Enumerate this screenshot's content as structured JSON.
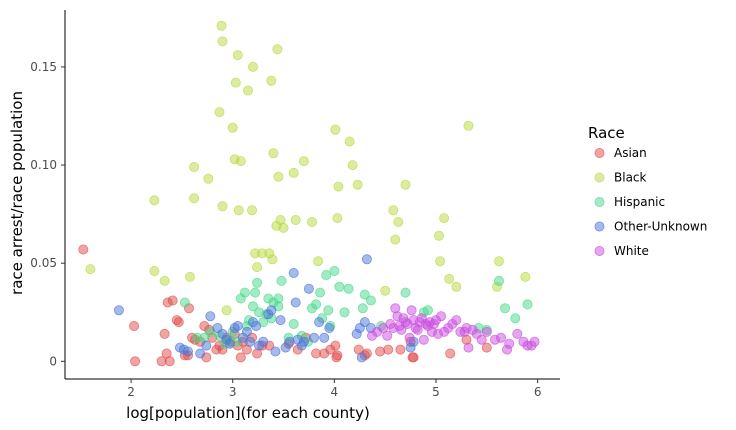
{
  "chart_data": {
    "type": "scatter",
    "xlabel": "log[population](for each county)",
    "ylabel": "race arrest/race population",
    "xlim": [
      1.35,
      6.22
    ],
    "ylim": [
      -0.009,
      0.179
    ],
    "x_ticks": [
      2,
      3,
      4,
      5,
      6
    ],
    "y_ticks": [
      0,
      0.05,
      0.1,
      0.15
    ],
    "x_tick_labels": [
      "2",
      "3",
      "4",
      "5",
      "6"
    ],
    "y_tick_labels": [
      "0",
      "0.05",
      "0.10",
      "0.15"
    ],
    "grid": false,
    "legend": {
      "title": "Race",
      "position": "right"
    },
    "series": [
      {
        "name": "Asian",
        "color": "#e24b4b",
        "points": [
          [
            1.53,
            0.057
          ],
          [
            2.03,
            0.018
          ],
          [
            2.04,
            0.0
          ],
          [
            2.3,
            0.0
          ],
          [
            2.33,
            0.014
          ],
          [
            2.35,
            0.004
          ],
          [
            2.36,
            0.03
          ],
          [
            2.38,
            0.0
          ],
          [
            2.41,
            0.031
          ],
          [
            2.45,
            0.021
          ],
          [
            2.47,
            0.02
          ],
          [
            2.53,
            0.003
          ],
          [
            2.56,
            0.003
          ],
          [
            2.57,
            0.027
          ],
          [
            2.6,
            0.012
          ],
          [
            2.63,
            0.011
          ],
          [
            2.68,
            0.01
          ],
          [
            2.72,
            0.018
          ],
          [
            2.74,
            0.002
          ],
          [
            2.77,
            0.016
          ],
          [
            2.8,
            0.012
          ],
          [
            2.84,
            0.006
          ],
          [
            2.87,
            0.008
          ],
          [
            2.9,
            0.006
          ],
          [
            2.94,
            0.012
          ],
          [
            2.98,
            0.01
          ],
          [
            3.02,
            0.014
          ],
          [
            3.05,
            0.008
          ],
          [
            3.08,
            0.002
          ],
          [
            3.1,
            0.01
          ],
          [
            3.14,
            0.006
          ],
          [
            3.19,
            0.012
          ],
          [
            3.24,
            0.004
          ],
          [
            3.29,
            0.008
          ],
          [
            3.36,
            0.008
          ],
          [
            3.55,
            0.009
          ],
          [
            3.64,
            0.006
          ],
          [
            3.72,
            0.012
          ],
          [
            3.82,
            0.004
          ],
          [
            3.9,
            0.004
          ],
          [
            3.96,
            0.006
          ],
          [
            4.01,
            0.008
          ],
          [
            4.02,
            0.002
          ],
          [
            4.03,
            0.003
          ],
          [
            4.24,
            0.006
          ],
          [
            4.3,
            0.003
          ],
          [
            4.32,
            0.004
          ],
          [
            4.45,
            0.005
          ],
          [
            4.53,
            0.006
          ],
          [
            4.65,
            0.006
          ],
          [
            4.75,
            0.01
          ],
          [
            4.77,
            0.002
          ],
          [
            4.78,
            0.002
          ],
          [
            5.14,
            0.004
          ],
          [
            5.3,
            0.011
          ],
          [
            5.5,
            0.007
          ]
        ]
      },
      {
        "name": "Black",
        "color": "#b7d93e",
        "points": [
          [
            1.6,
            0.047
          ],
          [
            2.23,
            0.082
          ],
          [
            2.23,
            0.046
          ],
          [
            2.33,
            0.041
          ],
          [
            2.58,
            0.043
          ],
          [
            2.62,
            0.099
          ],
          [
            2.62,
            0.083
          ],
          [
            2.76,
            0.093
          ],
          [
            2.87,
            0.127
          ],
          [
            2.89,
            0.171
          ],
          [
            2.9,
            0.163
          ],
          [
            2.9,
            0.079
          ],
          [
            2.94,
            0.026
          ],
          [
            3.0,
            0.119
          ],
          [
            3.02,
            0.103
          ],
          [
            3.03,
            0.142
          ],
          [
            3.05,
            0.156
          ],
          [
            3.06,
            0.077
          ],
          [
            3.08,
            0.102
          ],
          [
            3.15,
            0.138
          ],
          [
            3.19,
            0.077
          ],
          [
            3.2,
            0.15
          ],
          [
            3.22,
            0.055
          ],
          [
            3.24,
            0.048
          ],
          [
            3.29,
            0.055
          ],
          [
            3.36,
            0.055
          ],
          [
            3.38,
            0.143
          ],
          [
            3.39,
            0.052
          ],
          [
            3.4,
            0.106
          ],
          [
            3.43,
            0.069
          ],
          [
            3.44,
            0.159
          ],
          [
            3.45,
            0.094
          ],
          [
            3.47,
            0.072
          ],
          [
            3.5,
            0.068
          ],
          [
            3.6,
            0.096
          ],
          [
            3.62,
            0.072
          ],
          [
            3.7,
            0.102
          ],
          [
            3.78,
            0.071
          ],
          [
            3.84,
            0.051
          ],
          [
            4.01,
            0.118
          ],
          [
            4.03,
            0.073
          ],
          [
            4.04,
            0.089
          ],
          [
            4.15,
            0.112
          ],
          [
            4.18,
            0.1
          ],
          [
            4.23,
            0.09
          ],
          [
            4.5,
            0.036
          ],
          [
            4.58,
            0.077
          ],
          [
            4.6,
            0.062
          ],
          [
            4.63,
            0.071
          ],
          [
            4.7,
            0.09
          ],
          [
            5.03,
            0.064
          ],
          [
            5.04,
            0.051
          ],
          [
            5.08,
            0.073
          ],
          [
            5.13,
            0.042
          ],
          [
            5.2,
            0.038
          ],
          [
            5.32,
            0.12
          ],
          [
            5.6,
            0.038
          ],
          [
            5.62,
            0.051
          ],
          [
            5.88,
            0.043
          ]
        ]
      },
      {
        "name": "Hispanic",
        "color": "#47d88a",
        "points": [
          [
            2.53,
            0.03
          ],
          [
            2.65,
            0.012
          ],
          [
            2.72,
            0.012
          ],
          [
            2.78,
            0.015
          ],
          [
            2.87,
            0.013
          ],
          [
            2.92,
            0.009
          ],
          [
            2.96,
            0.011
          ],
          [
            3.0,
            0.015
          ],
          [
            3.04,
            0.01
          ],
          [
            3.08,
            0.032
          ],
          [
            3.12,
            0.035
          ],
          [
            3.14,
            0.018
          ],
          [
            3.16,
            0.021
          ],
          [
            3.2,
            0.028
          ],
          [
            3.22,
            0.035
          ],
          [
            3.24,
            0.04
          ],
          [
            3.26,
            0.025
          ],
          [
            3.3,
            0.02
          ],
          [
            3.33,
            0.024
          ],
          [
            3.35,
            0.032
          ],
          [
            3.38,
            0.022
          ],
          [
            3.4,
            0.03
          ],
          [
            3.45,
            0.028
          ],
          [
            3.45,
            0.032
          ],
          [
            3.48,
            0.041
          ],
          [
            3.55,
            0.012
          ],
          [
            3.6,
            0.019
          ],
          [
            3.68,
            0.013
          ],
          [
            3.74,
            0.01
          ],
          [
            3.78,
            0.027
          ],
          [
            3.82,
            0.029
          ],
          [
            3.86,
            0.035
          ],
          [
            3.88,
            0.022
          ],
          [
            3.92,
            0.044
          ],
          [
            3.94,
            0.026
          ],
          [
            3.96,
            0.018
          ],
          [
            4.0,
            0.046
          ],
          [
            4.05,
            0.038
          ],
          [
            4.1,
            0.025
          ],
          [
            4.14,
            0.037
          ],
          [
            4.28,
            0.027
          ],
          [
            4.3,
            0.034
          ],
          [
            4.36,
            0.031
          ],
          [
            4.46,
            0.018
          ],
          [
            4.7,
            0.035
          ],
          [
            4.88,
            0.025
          ],
          [
            4.92,
            0.026
          ],
          [
            5.42,
            0.017
          ],
          [
            5.5,
            0.016
          ],
          [
            5.62,
            0.041
          ],
          [
            5.68,
            0.027
          ],
          [
            5.78,
            0.022
          ],
          [
            5.9,
            0.029
          ]
        ]
      },
      {
        "name": "Other-Unknown",
        "color": "#4a75db",
        "points": [
          [
            1.88,
            0.026
          ],
          [
            2.48,
            0.007
          ],
          [
            2.52,
            0.006
          ],
          [
            2.56,
            0.005
          ],
          [
            2.68,
            0.004
          ],
          [
            2.74,
            0.008
          ],
          [
            2.78,
            0.023
          ],
          [
            2.85,
            0.017
          ],
          [
            2.9,
            0.014
          ],
          [
            2.94,
            0.011
          ],
          [
            2.97,
            0.009
          ],
          [
            3.02,
            0.017
          ],
          [
            3.05,
            0.018
          ],
          [
            3.1,
            0.012
          ],
          [
            3.14,
            0.015
          ],
          [
            3.17,
            0.01
          ],
          [
            3.2,
            0.02
          ],
          [
            3.23,
            0.018
          ],
          [
            3.26,
            0.008
          ],
          [
            3.3,
            0.01
          ],
          [
            3.35,
            0.024
          ],
          [
            3.38,
            0.026
          ],
          [
            3.42,
            0.005
          ],
          [
            3.47,
            0.021
          ],
          [
            3.52,
            0.007
          ],
          [
            3.56,
            0.01
          ],
          [
            3.6,
            0.045
          ],
          [
            3.62,
            0.03
          ],
          [
            3.64,
            0.011
          ],
          [
            3.68,
            0.008
          ],
          [
            3.7,
            0.01
          ],
          [
            3.75,
            0.037
          ],
          [
            3.8,
            0.012
          ],
          [
            3.85,
            0.02
          ],
          [
            3.9,
            0.012
          ],
          [
            3.95,
            0.017
          ],
          [
            4.22,
            0.014
          ],
          [
            4.25,
            0.017
          ],
          [
            4.27,
            0.002
          ],
          [
            4.3,
            0.02
          ],
          [
            4.32,
            0.052
          ],
          [
            4.36,
            0.017
          ],
          [
            4.75,
            0.007
          ],
          [
            4.78,
            0.01
          ]
        ]
      },
      {
        "name": "White",
        "color": "#c94ee0",
        "points": [
          [
            4.37,
            0.013
          ],
          [
            4.42,
            0.015
          ],
          [
            4.48,
            0.017
          ],
          [
            4.52,
            0.013
          ],
          [
            4.55,
            0.019
          ],
          [
            4.58,
            0.017
          ],
          [
            4.6,
            0.027
          ],
          [
            4.62,
            0.023
          ],
          [
            4.64,
            0.018
          ],
          [
            4.66,
            0.016
          ],
          [
            4.68,
            0.022
          ],
          [
            4.7,
            0.02
          ],
          [
            4.72,
            0.019
          ],
          [
            4.74,
            0.012
          ],
          [
            4.76,
            0.026
          ],
          [
            4.78,
            0.021
          ],
          [
            4.8,
            0.017
          ],
          [
            4.82,
            0.016
          ],
          [
            4.84,
            0.02
          ],
          [
            4.86,
            0.022
          ],
          [
            4.88,
            0.011
          ],
          [
            4.9,
            0.019
          ],
          [
            4.92,
            0.018
          ],
          [
            4.94,
            0.02
          ],
          [
            4.96,
            0.015
          ],
          [
            4.98,
            0.019
          ],
          [
            5.0,
            0.021
          ],
          [
            5.02,
            0.014
          ],
          [
            5.05,
            0.023
          ],
          [
            5.08,
            0.015
          ],
          [
            5.12,
            0.017
          ],
          [
            5.16,
            0.019
          ],
          [
            5.2,
            0.021
          ],
          [
            5.24,
            0.015
          ],
          [
            5.28,
            0.015
          ],
          [
            5.3,
            0.017
          ],
          [
            5.32,
            0.007
          ],
          [
            5.36,
            0.016
          ],
          [
            5.4,
            0.014
          ],
          [
            5.45,
            0.011
          ],
          [
            5.5,
            0.015
          ],
          [
            5.58,
            0.011
          ],
          [
            5.64,
            0.012
          ],
          [
            5.7,
            0.006
          ],
          [
            5.72,
            0.009
          ],
          [
            5.8,
            0.014
          ],
          [
            5.86,
            0.01
          ],
          [
            5.9,
            0.008
          ],
          [
            5.94,
            0.008
          ],
          [
            5.97,
            0.01
          ]
        ]
      }
    ]
  }
}
